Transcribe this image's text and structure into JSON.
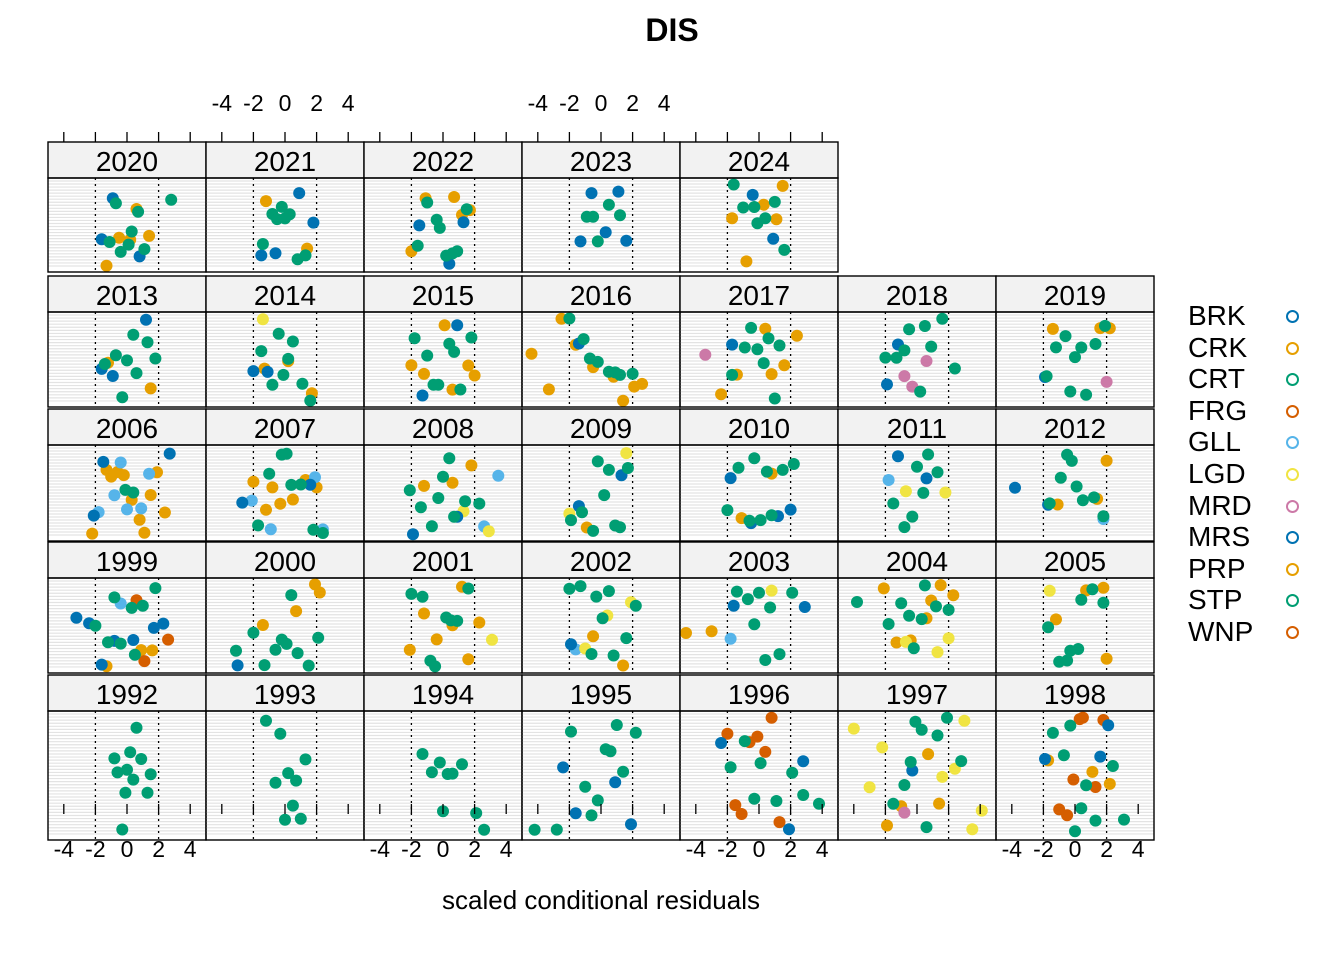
{
  "title": "DIS",
  "xlabel": "scaled conditional residuals",
  "axis": {
    "xlim": [
      -5,
      5
    ],
    "ticks": [
      -4,
      -2,
      0,
      2,
      4
    ],
    "ref_lines": [
      -2,
      2
    ]
  },
  "colors": {
    "BRK": "#0072B2",
    "CRK": "#E69F00",
    "CRT": "#009E73",
    "FRG": "#D55E00",
    "GLL": "#56B4E9",
    "LGD": "#F0E442",
    "MRD": "#CC79A7",
    "MRS": "#0072B2",
    "PRP": "#E69F00",
    "STP": "#009E73",
    "WNP": "#D55E00"
  },
  "legend": [
    "BRK",
    "CRK",
    "CRT",
    "FRG",
    "GLL",
    "LGD",
    "MRD",
    "MRS",
    "PRP",
    "STP",
    "WNP"
  ],
  "chart_data": {
    "type": "scatter",
    "title": "DIS",
    "xlabel": "scaled conditional residuals",
    "xlim": [
      -5,
      5
    ],
    "layout": "lattice dotplot, 7 columns x 5 rows, one panel per year",
    "panels": [
      {
        "year": "2020",
        "groups": {
          "PRP": [
            -0.5,
            0.6,
            1.4,
            -1.3,
            0.2
          ],
          "MRS": [
            -1.6,
            -0.9,
            0.8
          ],
          "STP": [
            -1.1,
            -0.4,
            0.1,
            0.7,
            1.1,
            2.8,
            0.3,
            -0.7
          ]
        }
      },
      {
        "year": "2021",
        "groups": {
          "MRS": [
            -1.5,
            -0.6,
            0.9,
            1.8
          ],
          "PRP": [
            -1.2,
            1.4
          ],
          "STP": [
            -1.4,
            -0.8,
            -0.2,
            0.3,
            0.8,
            1.3,
            0.0,
            -0.5
          ]
        }
      },
      {
        "year": "2022",
        "groups": {
          "PRP": [
            -2.0,
            -1.1,
            0.7,
            1.7,
            1.2
          ],
          "MRS": [
            -1.5,
            0.4,
            1.3
          ],
          "STP": [
            -1.6,
            -1.0,
            -0.4,
            0.2,
            0.9,
            1.5,
            -0.2,
            0.6
          ]
        }
      },
      {
        "year": "2023",
        "groups": {
          "MRS": [
            -1.3,
            -0.6,
            0.3,
            1.1,
            1.6
          ],
          "STP": [
            -0.9,
            -0.2,
            0.5,
            1.2,
            -0.5
          ]
        }
      },
      {
        "year": "2024",
        "groups": {
          "PRP": [
            -1.7,
            -0.8,
            1.1,
            1.5,
            0.3
          ],
          "MRS": [
            -0.4,
            0.9
          ],
          "STP": [
            -1.6,
            -1.0,
            -0.3,
            0.4,
            1.0,
            1.6,
            -0.1
          ]
        }
      },
      {
        "year": "2013",
        "groups": {
          "MRS": [
            -1.6,
            -0.9,
            1.2
          ],
          "PRP": [
            -1.2,
            1.5
          ],
          "STP": [
            -1.4,
            -0.7,
            0.0,
            0.6,
            1.3,
            1.8,
            -0.3,
            0.4
          ]
        }
      },
      {
        "year": "2014",
        "groups": {
          "MRS": [
            -2.0,
            -1.1
          ],
          "LGD": [
            -1.4
          ],
          "PRP": [
            0.2,
            1.7,
            -1.3
          ],
          "STP": [
            -1.5,
            -0.8,
            -0.1,
            0.5,
            1.1,
            1.6,
            0.2,
            -0.4
          ]
        }
      },
      {
        "year": "2015",
        "groups": {
          "PRP": [
            -2.0,
            -1.2,
            0.6,
            1.6,
            2.0,
            0.1
          ],
          "MRS": [
            -1.3,
            0.9
          ],
          "STP": [
            -1.8,
            -1.0,
            -0.3,
            0.4,
            1.1,
            1.8,
            -0.6,
            0.7
          ]
        }
      },
      {
        "year": "2016",
        "groups": {
          "PRP": [
            -4.4,
            -2.5,
            -1.6,
            0.8,
            2.1,
            2.6,
            1.4,
            -0.5,
            -3.3
          ],
          "MRS": [
            -1.4
          ],
          "STP": [
            -2.0,
            -1.1,
            -0.2,
            0.5,
            1.2,
            2.0,
            -0.7,
            0.9
          ]
        }
      },
      {
        "year": "2017",
        "groups": {
          "MRD": [
            -3.4
          ],
          "PRP": [
            -2.4,
            -1.4,
            0.4,
            1.6,
            2.4,
            0.8
          ],
          "MRS": [
            -1.7
          ],
          "STP": [
            -1.7,
            -0.9,
            -0.1,
            0.6,
            1.3,
            -0.5,
            0.3,
            1.0
          ]
        }
      },
      {
        "year": "2018",
        "groups": {
          "MRD": [
            -0.8,
            0.6,
            -0.3
          ],
          "MRS": [
            -1.9,
            -1.2
          ],
          "STP": [
            -2.0,
            -1.3,
            -0.5,
            0.2,
            0.9,
            1.6,
            2.4,
            -0.8,
            0.5
          ]
        }
      },
      {
        "year": "2019",
        "groups": {
          "PRP": [
            -1.4,
            1.6,
            2.2
          ],
          "MRD": [
            2.0
          ],
          "MRS": [
            -1.9
          ],
          "STP": [
            -1.8,
            -1.2,
            -0.6,
            0.0,
            0.7,
            1.3,
            1.9,
            -0.3,
            0.4
          ]
        }
      },
      {
        "year": "2006",
        "groups": {
          "PRP": [
            -2.2,
            -1.3,
            -0.6,
            0.3,
            1.1,
            1.9,
            2.4,
            -1.0,
            0.8,
            -0.2,
            1.5
          ],
          "GLL": [
            -1.8,
            -0.8,
            0.0,
            0.9,
            1.4,
            -0.4
          ],
          "MRS": [
            -2.1,
            2.7,
            -1.5
          ],
          "STP": [
            0.4,
            -0.1
          ]
        }
      },
      {
        "year": "2007",
        "groups": {
          "PRP": [
            -2.0,
            -1.2,
            -0.3,
            0.5,
            1.3,
            2.0,
            -0.8
          ],
          "GLL": [
            -2.1,
            1.9,
            2.4,
            -0.9
          ],
          "MRS": [
            -2.7,
            1.6
          ],
          "STP": [
            -1.7,
            -1.0,
            -0.2,
            0.4,
            1.0,
            1.8,
            2.4,
            0.1
          ]
        }
      },
      {
        "year": "2008",
        "groups": {
          "PRP": [
            -1.2,
            0.6,
            1.8
          ],
          "GLL": [
            2.6,
            3.5
          ],
          "LGD": [
            2.9,
            1.3
          ],
          "MRS": [
            -1.9,
            0.9
          ],
          "STP": [
            -2.1,
            -1.4,
            -0.7,
            0.0,
            0.7,
            1.4,
            2.3,
            -0.3,
            0.4
          ]
        }
      },
      {
        "year": "2009",
        "groups": {
          "LGD": [
            -2.0,
            1.6
          ],
          "MRS": [
            -1.4,
            1.3
          ],
          "PRP": [
            -0.9
          ],
          "STP": [
            -1.9,
            -1.2,
            -0.5,
            0.2,
            0.9,
            1.7,
            -0.2,
            0.5,
            1.2
          ]
        }
      },
      {
        "year": "2010",
        "groups": {
          "MRS": [
            -1.8,
            -0.5,
            1.2,
            2.0
          ],
          "PRP": [
            -1.1,
            0.8
          ],
          "STP": [
            -2.0,
            -1.3,
            -0.6,
            0.1,
            0.8,
            1.5,
            2.2,
            -0.3,
            0.5
          ]
        }
      },
      {
        "year": "2011",
        "groups": {
          "GLL": [
            -1.8
          ],
          "LGD": [
            -0.7,
            1.8
          ],
          "MRS": [
            -1.2,
            0.6
          ],
          "STP": [
            -1.5,
            -0.8,
            0.0,
            0.7,
            1.3,
            -0.3,
            0.4
          ]
        }
      },
      {
        "year": "2012",
        "groups": {
          "MRS": [
            -3.8,
            -1.7
          ],
          "PRP": [
            -1.1,
            1.4,
            2.0
          ],
          "GLL": [
            1.8
          ],
          "STP": [
            -1.6,
            -0.9,
            -0.2,
            0.5,
            1.2,
            1.8,
            0.1,
            -0.5
          ]
        }
      },
      {
        "year": "1999",
        "groups": {
          "MRS": [
            -3.2,
            -2.4,
            -1.6,
            0.4,
            2.3,
            -0.8,
            1.7
          ],
          "PRP": [
            -1.3,
            0.9,
            1.6
          ],
          "WNP": [
            0.6,
            2.6,
            1.1
          ],
          "GLL": [
            -0.4
          ],
          "STP": [
            -2.0,
            -1.2,
            -0.4,
            0.3,
            1.0,
            1.8,
            -0.8,
            0.5
          ]
        }
      },
      {
        "year": "2000",
        "groups": {
          "PRP": [
            -1.4,
            0.7,
            1.9,
            2.2
          ],
          "MRS": [
            -3.0
          ],
          "STP": [
            -3.1,
            -2.0,
            -1.3,
            -0.6,
            0.1,
            0.8,
            1.5,
            2.1,
            -0.2,
            0.4
          ]
        }
      },
      {
        "year": "2001",
        "groups": {
          "PRP": [
            -2.1,
            -1.2,
            -0.4,
            0.6,
            1.6,
            2.3,
            1.2
          ],
          "LGD": [
            3.1
          ],
          "STP": [
            -2.0,
            -1.3,
            -0.5,
            0.2,
            0.9,
            1.6,
            -0.8,
            0.5
          ]
        }
      },
      {
        "year": "2002",
        "groups": {
          "GLL": [
            -1.6
          ],
          "LGD": [
            -1.0,
            0.4,
            1.9
          ],
          "PRP": [
            -0.5,
            1.4
          ],
          "MRS": [
            -1.9
          ],
          "STP": [
            -2.0,
            -1.3,
            -0.6,
            0.1,
            0.8,
            1.6,
            2.2,
            -0.3,
            0.5
          ]
        }
      },
      {
        "year": "2003",
        "groups": {
          "PRP": [
            -5.0,
            -3.0
          ],
          "GLL": [
            -1.8
          ],
          "MRS": [
            2.9,
            -1.6
          ],
          "LGD": [
            0.8
          ],
          "STP": [
            -1.4,
            -0.7,
            0.0,
            0.7,
            1.3,
            2.1,
            -0.3,
            0.4
          ]
        }
      },
      {
        "year": "2004",
        "groups": {
          "PRP": [
            -2.1,
            -1.3,
            -0.4,
            0.6,
            1.5,
            2.3,
            0.9
          ],
          "LGD": [
            -0.7,
            1.3,
            2.0
          ],
          "STP": [
            -3.8,
            -1.8,
            -1.0,
            -0.2,
            0.5,
            1.2,
            2.0,
            -0.5,
            0.3
          ]
        }
      },
      {
        "year": "2005",
        "groups": {
          "PRP": [
            -1.2,
            0.7,
            1.8,
            2.0
          ],
          "LGD": [
            -1.6
          ],
          "STP": [
            -1.7,
            -1.0,
            -0.3,
            0.4,
            1.1,
            1.8,
            -0.5,
            0.2
          ]
        }
      },
      {
        "year": "1992",
        "groups": {
          "STP": [
            -0.8,
            -0.3,
            0.2,
            0.6,
            0.9,
            1.3,
            1.5,
            0.0,
            -0.6,
            -0.1,
            0.4
          ]
        }
      },
      {
        "year": "1993",
        "groups": {
          "STP": [
            -1.2,
            -0.6,
            0.0,
            0.5,
            1.0,
            1.3,
            0.2,
            -0.3,
            0.7
          ]
        }
      },
      {
        "year": "1994",
        "groups": {
          "STP": [
            -1.3,
            -0.7,
            0.0,
            0.6,
            1.2,
            2.1,
            2.6,
            0.3,
            -0.2
          ]
        }
      },
      {
        "year": "1995",
        "groups": {
          "MRS": [
            -2.4,
            -1.6,
            0.9,
            1.9
          ],
          "STP": [
            -4.2,
            -2.8,
            -1.9,
            -1.0,
            -0.2,
            0.6,
            1.4,
            2.2,
            -0.6,
            0.3,
            1.0
          ]
        }
      },
      {
        "year": "1996",
        "groups": {
          "WNP": [
            -2.0,
            -1.1,
            -0.1,
            0.8,
            -1.5,
            0.4,
            1.3,
            -0.6
          ],
          "MRS": [
            1.9,
            2.8,
            -2.4
          ],
          "STP": [
            -1.8,
            -0.9,
            0.1,
            1.1,
            2.1,
            3.8,
            2.8,
            -0.3
          ]
        }
      },
      {
        "year": "1997",
        "groups": {
          "LGD": [
            -4.0,
            -3.0,
            -2.2,
            2.4,
            3.0,
            3.5,
            1.6,
            4.1
          ],
          "PRP": [
            -1.9,
            -1.0,
            0.7,
            1.4
          ],
          "MRD": [
            -0.8
          ],
          "MRS": [
            -0.3
          ],
          "STP": [
            -1.5,
            -0.8,
            -0.1,
            0.6,
            1.3,
            1.9,
            2.8,
            -0.4,
            0.3
          ]
        }
      },
      {
        "year": "1998",
        "groups": {
          "WNP": [
            -1.0,
            -0.1,
            0.5,
            -0.5,
            0.3,
            1.3,
            1.8
          ],
          "PRP": [
            -1.7,
            1.1,
            2.2
          ],
          "MRS": [
            -1.9,
            1.6,
            2.1
          ],
          "STP": [
            -1.4,
            -0.7,
            0.0,
            0.7,
            1.3,
            2.4,
            3.1,
            -0.3,
            0.4
          ]
        }
      }
    ]
  }
}
